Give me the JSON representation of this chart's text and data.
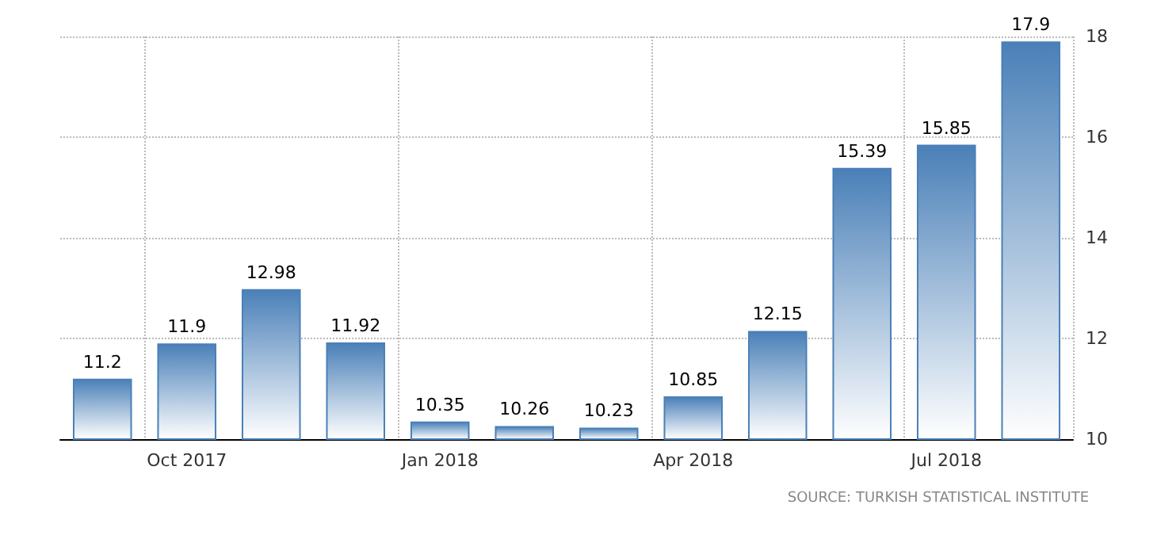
{
  "chart_data": {
    "type": "bar",
    "categories": [
      null,
      "Oct 2017",
      null,
      null,
      "Jan 2018",
      null,
      null,
      "Apr 2018",
      null,
      null,
      "Jul 2018",
      null
    ],
    "values": [
      11.2,
      11.9,
      12.98,
      11.92,
      10.35,
      10.26,
      10.23,
      10.85,
      12.15,
      15.39,
      15.85,
      17.9
    ],
    "color": "#4a80b8",
    "ylim": [
      10,
      18
    ],
    "yticks": [
      10,
      12,
      14,
      16,
      18
    ],
    "grid": true,
    "data_labels": true,
    "annotations": [
      "SOURCE: TURKISH STATISTICAL INSTITUTE"
    ]
  }
}
